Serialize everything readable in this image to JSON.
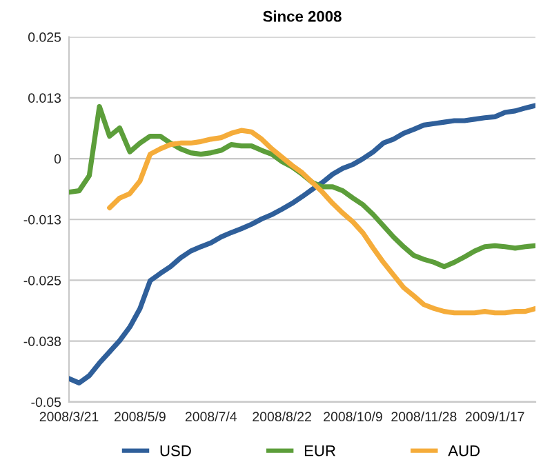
{
  "chart_data": {
    "type": "line",
    "title": "Since 2008",
    "categories": [
      "2008/3/21",
      null,
      null,
      null,
      null,
      null,
      null,
      "2008/5/9",
      null,
      null,
      null,
      null,
      null,
      null,
      "2008/7/4",
      null,
      null,
      null,
      null,
      null,
      null,
      "2008/8/22",
      null,
      null,
      null,
      null,
      null,
      null,
      "2008/10/9",
      null,
      null,
      null,
      null,
      null,
      null,
      "2008/11/28",
      null,
      null,
      null,
      null,
      null,
      null,
      "2009/1/17",
      null,
      null,
      null,
      null
    ],
    "series": [
      {
        "name": "USD",
        "color": "#2f5f9a",
        "values": [
          -0.0452,
          -0.0461,
          -0.0446,
          -0.042,
          -0.0397,
          -0.0374,
          -0.0346,
          -0.0308,
          -0.0251,
          -0.0236,
          -0.0222,
          -0.0204,
          -0.019,
          -0.0181,
          -0.0173,
          -0.0161,
          -0.0152,
          -0.0144,
          -0.0135,
          -0.0124,
          -0.0115,
          -0.0104,
          -0.0092,
          -0.0078,
          -0.0063,
          -0.0049,
          -0.0032,
          -0.002,
          -0.0012,
          0,
          0.0014,
          0.0032,
          0.004,
          0.0052,
          0.006,
          0.0069,
          0.0072,
          0.0075,
          0.0078,
          0.0078,
          0.0081,
          0.0084,
          0.0086,
          0.0095,
          0.0098,
          0.0104,
          0.0109
        ]
      },
      {
        "name": "EUR",
        "color": "#5c9e3a",
        "values": [
          -0.0069,
          -0.0066,
          -0.0035,
          0.0107,
          0.0046,
          0.0063,
          0.0014,
          0.0032,
          0.0046,
          0.0046,
          0.0032,
          0.002,
          0.0012,
          0.0009,
          0.0012,
          0.0017,
          0.0029,
          0.0026,
          0.0026,
          0.0017,
          0.0009,
          -0.0006,
          -0.0017,
          -0.0032,
          -0.0049,
          -0.0058,
          -0.0058,
          -0.0066,
          -0.0081,
          -0.0095,
          -0.0115,
          -0.0138,
          -0.0161,
          -0.0181,
          -0.0199,
          -0.0207,
          -0.0213,
          -0.0222,
          -0.0213,
          -0.0202,
          -0.019,
          -0.0181,
          -0.0179,
          -0.0181,
          -0.0184,
          -0.0181,
          -0.0179
        ]
      },
      {
        "name": "AUD",
        "color": "#f5ac3a",
        "values": [
          null,
          null,
          null,
          null,
          -0.0101,
          -0.0081,
          -0.0072,
          -0.0046,
          0.0009,
          0.002,
          0.0029,
          0.0032,
          0.0032,
          0.0035,
          0.004,
          0.0043,
          0.0052,
          0.0058,
          0.0055,
          0.004,
          0.002,
          0.0003,
          -0.0014,
          -0.0029,
          -0.0049,
          -0.0069,
          -0.0092,
          -0.0112,
          -0.013,
          -0.0153,
          -0.0184,
          -0.0213,
          -0.0239,
          -0.0265,
          -0.0282,
          -0.03,
          -0.0308,
          -0.0314,
          -0.0317,
          -0.0317,
          -0.0317,
          -0.0314,
          -0.0317,
          -0.0317,
          -0.0314,
          -0.0314,
          -0.0308
        ]
      }
    ],
    "ylim": [
      -0.05,
      0.025
    ],
    "yticks": [
      {
        "value": -0.05,
        "label": "-0.05"
      },
      {
        "value": -0.0375,
        "label": "-0.038"
      },
      {
        "value": -0.025,
        "label": "-0.025"
      },
      {
        "value": -0.0125,
        "label": "-0.013"
      },
      {
        "value": 0,
        "label": "0"
      },
      {
        "value": 0.0125,
        "label": "0.013"
      },
      {
        "value": 0.025,
        "label": "0.025"
      }
    ],
    "grid": "y",
    "legend": "bottom",
    "marker": "none",
    "line_style": "solid"
  }
}
